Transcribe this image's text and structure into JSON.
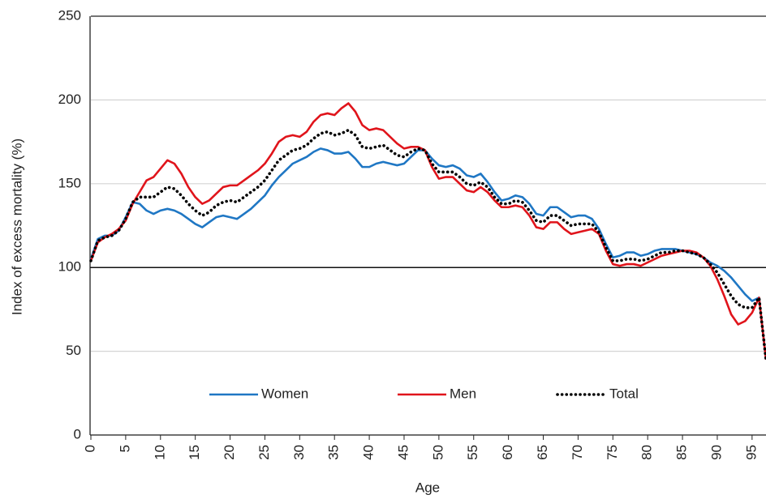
{
  "chart_data": {
    "type": "line",
    "x_label": "Age",
    "y_label": "Index of excess mortality (%)",
    "x": [
      0,
      1,
      2,
      3,
      4,
      5,
      6,
      7,
      8,
      9,
      10,
      11,
      12,
      13,
      14,
      15,
      16,
      17,
      18,
      19,
      20,
      21,
      22,
      23,
      24,
      25,
      26,
      27,
      28,
      29,
      30,
      31,
      32,
      33,
      34,
      35,
      36,
      37,
      38,
      39,
      40,
      41,
      42,
      43,
      44,
      45,
      46,
      47,
      48,
      49,
      50,
      51,
      52,
      53,
      54,
      55,
      56,
      57,
      58,
      59,
      60,
      61,
      62,
      63,
      64,
      65,
      66,
      67,
      68,
      69,
      70,
      71,
      72,
      73,
      74,
      75,
      76,
      77,
      78,
      79,
      80,
      81,
      82,
      83,
      84,
      85,
      86,
      87,
      88,
      89,
      90,
      91,
      92,
      93,
      94,
      95,
      96,
      97
    ],
    "series": [
      {
        "name": "Women",
        "color": "#1f77c4",
        "style": "solid",
        "values": [
          105,
          117,
          119,
          119,
          122,
          130,
          139,
          138,
          134,
          132,
          134,
          135,
          134,
          132,
          129,
          126,
          124,
          127,
          130,
          131,
          130,
          129,
          132,
          135,
          139,
          143,
          149,
          154,
          158,
          162,
          164,
          166,
          169,
          171,
          170,
          168,
          168,
          169,
          165,
          160,
          160,
          162,
          163,
          162,
          161,
          162,
          166,
          170,
          170,
          165,
          161,
          160,
          161,
          159,
          155,
          154,
          156,
          151,
          145,
          140,
          141,
          143,
          142,
          138,
          132,
          131,
          136,
          136,
          133,
          130,
          131,
          131,
          129,
          123,
          114,
          106,
          107,
          109,
          109,
          107,
          108,
          110,
          111,
          111,
          111,
          110,
          109,
          108,
          106,
          103,
          101,
          98,
          94,
          89,
          84,
          80,
          82,
          45
        ]
      },
      {
        "name": "Men",
        "color": "#e0141b",
        "style": "solid",
        "values": [
          104,
          115,
          118,
          120,
          123,
          128,
          138,
          145,
          152,
          154,
          159,
          164,
          162,
          156,
          148,
          142,
          138,
          140,
          144,
          148,
          149,
          149,
          152,
          155,
          158,
          162,
          168,
          175,
          178,
          179,
          178,
          181,
          187,
          191,
          192,
          191,
          195,
          198,
          193,
          185,
          182,
          183,
          182,
          178,
          174,
          171,
          172,
          172,
          170,
          160,
          153,
          154,
          154,
          150,
          146,
          145,
          148,
          145,
          140,
          136,
          136,
          137,
          136,
          131,
          124,
          123,
          127,
          127,
          123,
          120,
          121,
          122,
          123,
          120,
          110,
          102,
          101,
          102,
          102,
          101,
          103,
          105,
          107,
          108,
          109,
          110,
          110,
          109,
          106,
          101,
          93,
          83,
          72,
          66,
          68,
          73,
          82,
          45
        ]
      },
      {
        "name": "Total",
        "color": "#000000",
        "style": "dotted",
        "values": [
          104,
          116,
          118,
          119,
          122,
          129,
          139,
          142,
          142,
          142,
          145,
          148,
          147,
          143,
          138,
          134,
          131,
          133,
          137,
          139,
          140,
          139,
          142,
          145,
          148,
          152,
          158,
          164,
          167,
          170,
          171,
          173,
          177,
          180,
          181,
          179,
          180,
          182,
          179,
          172,
          171,
          172,
          173,
          170,
          167,
          166,
          169,
          171,
          170,
          162,
          157,
          157,
          157,
          154,
          150,
          149,
          151,
          148,
          142,
          138,
          138,
          140,
          139,
          134,
          128,
          127,
          131,
          131,
          128,
          125,
          126,
          126,
          126,
          121,
          112,
          104,
          104,
          105,
          105,
          104,
          105,
          107,
          109,
          109,
          110,
          110,
          109,
          108,
          106,
          102,
          97,
          90,
          83,
          78,
          76,
          76,
          82,
          45
        ]
      }
    ],
    "xlim": [
      0,
      97
    ],
    "xticks": [
      0,
      5,
      10,
      15,
      20,
      25,
      30,
      35,
      40,
      45,
      50,
      55,
      60,
      65,
      70,
      75,
      80,
      85,
      90,
      95
    ],
    "ylim": [
      0,
      250
    ],
    "yticks": [
      0,
      50,
      100,
      150,
      200,
      250
    ],
    "grid": true,
    "x_axis_crosses_at": 100,
    "legend": "bottom"
  }
}
